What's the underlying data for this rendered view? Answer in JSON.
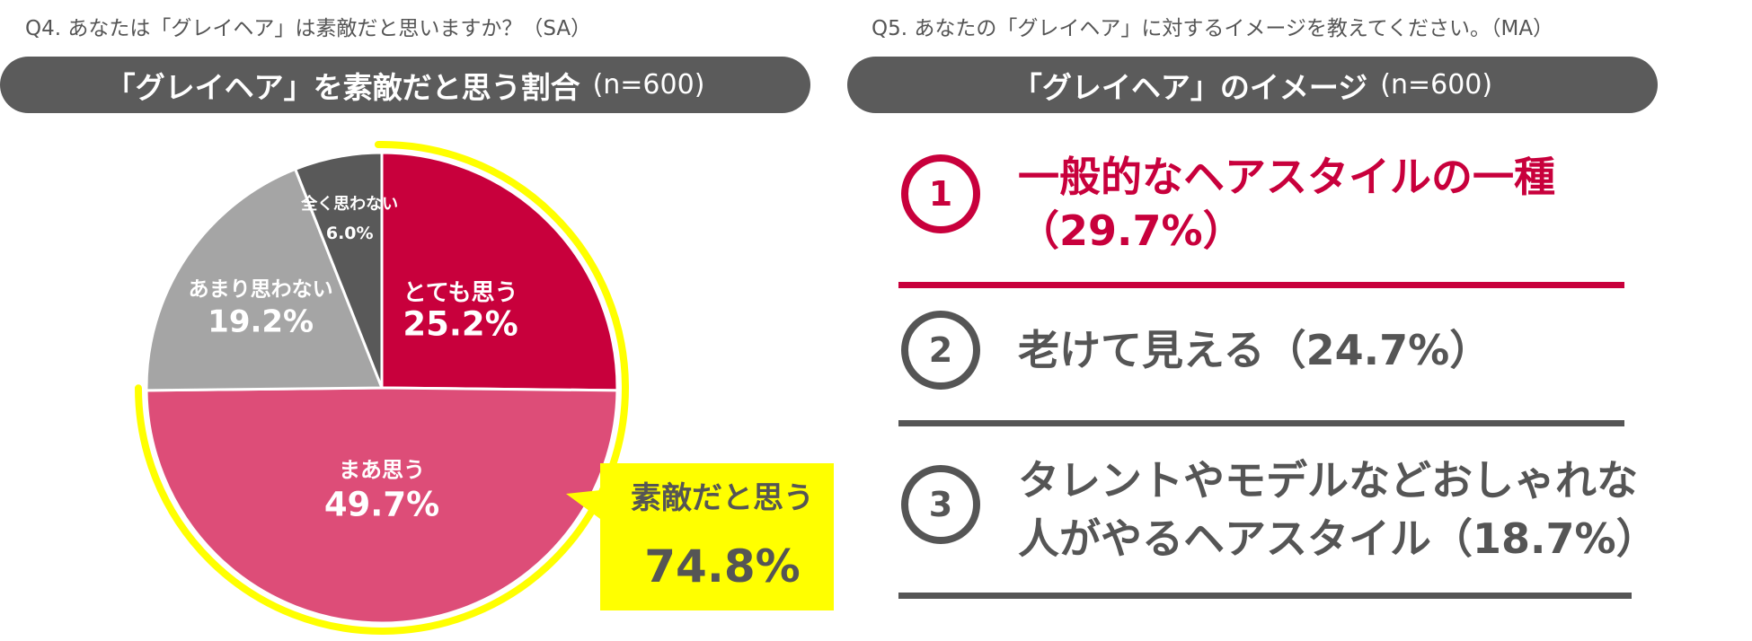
{
  "q4": {
    "question": "Q4. あなたは「グレイヘア」は素敵だと思いますか？（SA）",
    "banner_title": "「グレイヘア」を素敵だと思う割合",
    "banner_n": "(n=600)"
  },
  "q5": {
    "question": "Q5. あなたの「グレイヘア」に対するイメージを教えてください。（MA）",
    "banner_title": "「グレイヘア」のイメージ",
    "banner_n": "(n=600)"
  },
  "callout": {
    "label": "素敵だと思う",
    "value": "74.8%"
  },
  "ranking": [
    {
      "rank": "1",
      "line1": "一般的なヘアスタイルの一種",
      "line2": "（29.7%）"
    },
    {
      "rank": "2",
      "line1": "老けて見える（24.7%）",
      "line2": ""
    },
    {
      "rank": "3",
      "line1": "タレントやモデルなどおしゃれな",
      "line2": "人がやるヘアスタイル（18.7%）"
    }
  ],
  "colors": {
    "strongly_agree": "#c8003c",
    "somewhat_agree": "#dd4d78",
    "somewhat_disagree": "#a5a5a5",
    "strongly_disagree": "#595959",
    "highlight": "#ffff00",
    "dark": "#555555"
  },
  "chart_data": {
    "type": "pie",
    "title": "「グレイヘア」を素敵だと思う割合",
    "categories": [
      "とても思う",
      "まあ思う",
      "あまり思わない",
      "全く思わない"
    ],
    "values": [
      25.2,
      49.7,
      19.2,
      6.0
    ],
    "value_labels": [
      "25.2%",
      "49.7%",
      "19.2%",
      "6.0%"
    ],
    "start": "12 o'clock, clockwise",
    "highlight": {
      "slices": [
        "とても思う",
        "まあ思う"
      ],
      "label": "素敵だと思う",
      "value": "74.8%"
    }
  }
}
